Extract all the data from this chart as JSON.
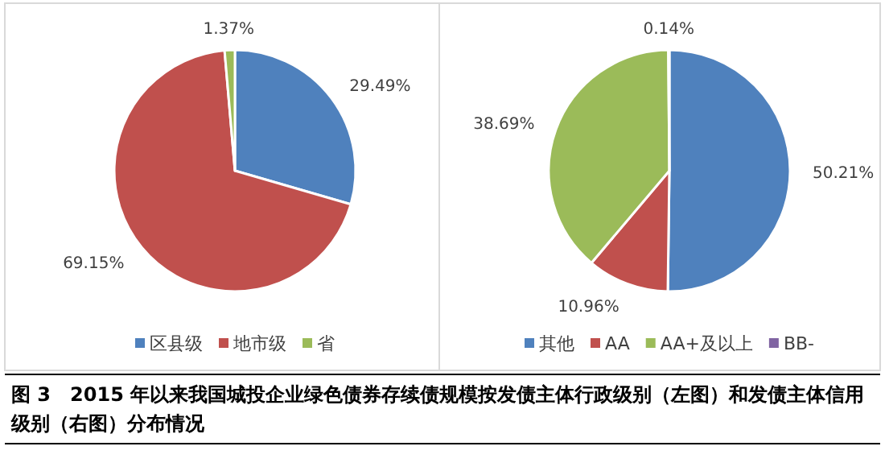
{
  "chart_data": [
    {
      "type": "pie",
      "title": "图 3　2015 年以来我国城投企业绿色债券存续债规模按发债主体行政级别（左图）和发债主体信用级别（右图）分布情况",
      "categories": [
        "区县级",
        "地市级",
        "省"
      ],
      "values": [
        29.49,
        69.15,
        1.37
      ],
      "colors": [
        "#4f81bd",
        "#c0504d",
        "#9bbb59"
      ],
      "value_labels": [
        "29.49%",
        "69.15%",
        "1.37%"
      ],
      "legend": "bottom"
    },
    {
      "type": "pie",
      "categories": [
        "其他",
        "AA",
        "AA+及以上",
        "BB-"
      ],
      "values": [
        50.21,
        10.96,
        38.69,
        0.14
      ],
      "colors": [
        "#4f81bd",
        "#c0504d",
        "#9bbb59",
        "#8064a2"
      ],
      "value_labels": [
        "50.21%",
        "10.96%",
        "38.69%",
        "0.14%"
      ],
      "legend": "bottom"
    }
  ]
}
